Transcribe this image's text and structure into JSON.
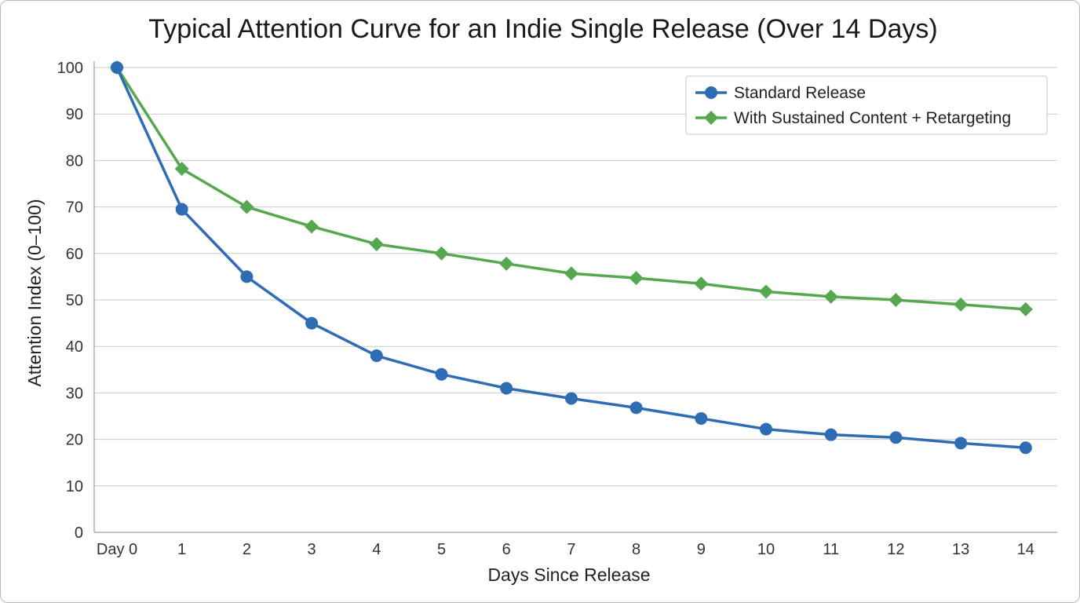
{
  "chart_data": {
    "type": "line",
    "title": "Typical Attention Curve for an Indie Single Release (Over 14 Days)",
    "xlabel": "Days Since Release",
    "ylabel": "Attention Index (0–100)",
    "categories": [
      "Day 0",
      "1",
      "2",
      "3",
      "4",
      "5",
      "6",
      "7",
      "8",
      "9",
      "10",
      "11",
      "12",
      "13",
      "14"
    ],
    "x": [
      0,
      1,
      2,
      3,
      4,
      5,
      6,
      7,
      8,
      9,
      10,
      11,
      12,
      13,
      14
    ],
    "ylim": [
      0,
      100
    ],
    "yticks": [
      0,
      10,
      20,
      30,
      40,
      50,
      60,
      70,
      80,
      90,
      100
    ],
    "grid": true,
    "legend_position": "top-right",
    "series": [
      {
        "name": "Standard Release",
        "color": "#2e6db4",
        "marker": "circle",
        "values": [
          100,
          69.5,
          55,
          45,
          38,
          34,
          31,
          28.8,
          26.8,
          24.5,
          22.2,
          21,
          20.4,
          19.2,
          18.2
        ]
      },
      {
        "name": "With Sustained Content + Retargeting",
        "color": "#55a84f",
        "marker": "diamond",
        "values": [
          100,
          78.2,
          70,
          65.8,
          62,
          60,
          57.8,
          55.7,
          54.7,
          53.5,
          51.8,
          50.7,
          50,
          49,
          48
        ]
      }
    ]
  }
}
